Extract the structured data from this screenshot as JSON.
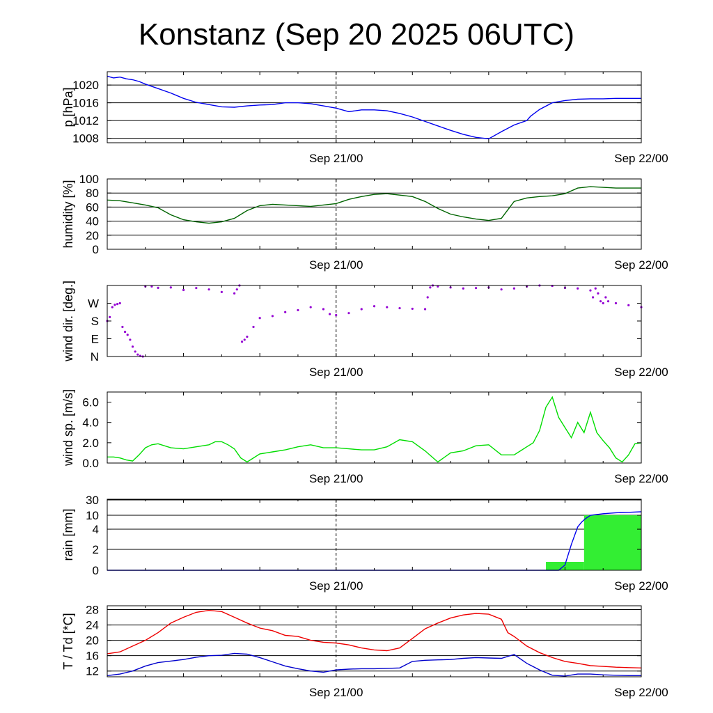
{
  "title": "Konstanz (Sep 20 2025 06UTC)",
  "colors": {
    "pressure": "#0000ee",
    "humidity": "#006400",
    "wind_dir": "#9400d3",
    "wind_speed": "#00dd00",
    "rain_bar_fill": "#33ee33",
    "rain_accum": "#0000ee",
    "temperature": "#ee0000",
    "dewpoint": "#0000cc",
    "frame": "#000000"
  },
  "chart_data": [
    {
      "type": "line",
      "ylabel": "p [hPa]",
      "x_ticks": [
        "Sep 21/00",
        "Sep 22/00"
      ],
      "x_range_hours": [
        0,
        42
      ],
      "ylim": [
        1007,
        1023
      ],
      "yticks": [
        1008,
        1012,
        1016,
        1020
      ],
      "ytick_labels": [
        "1008",
        "1012",
        "1016",
        "1020"
      ],
      "grid": true,
      "series": [
        {
          "values_key": "pressure",
          "x": [
            0,
            0.5,
            1,
            1.5,
            2,
            2.5,
            3,
            4,
            5,
            6,
            7,
            8,
            9,
            10,
            11,
            12,
            13,
            14,
            15,
            16,
            17,
            18,
            19,
            20,
            21,
            22,
            23,
            24,
            25,
            26,
            27,
            28,
            29,
            30,
            31,
            32,
            33,
            33.3,
            34,
            35,
            36,
            37,
            38,
            39,
            40,
            41,
            42
          ],
          "values": [
            1022.0,
            1021.6,
            1021.8,
            1021.4,
            1021.2,
            1020.8,
            1020.2,
            1019.2,
            1018.2,
            1017.0,
            1016.1,
            1015.6,
            1015.1,
            1015.0,
            1015.3,
            1015.5,
            1015.6,
            1016.0,
            1016.0,
            1015.8,
            1015.3,
            1014.8,
            1014.0,
            1014.4,
            1014.4,
            1014.2,
            1013.6,
            1012.8,
            1011.8,
            1010.8,
            1009.8,
            1008.9,
            1008.2,
            1007.9,
            1009.5,
            1011.0,
            1012.0,
            1013.0,
            1014.5,
            1016.0,
            1016.5,
            1016.8,
            1016.9,
            1016.9,
            1017.0,
            1017.0,
            1017.0
          ]
        }
      ]
    },
    {
      "type": "line",
      "ylabel": "humidity [%]",
      "x_ticks": [
        "Sep 21/00",
        "Sep 22/00"
      ],
      "x_range_hours": [
        0,
        42
      ],
      "ylim": [
        0,
        100
      ],
      "yticks": [
        0,
        20,
        40,
        60,
        80,
        100
      ],
      "ytick_labels": [
        "0",
        "20",
        "40",
        "60",
        "80",
        "100"
      ],
      "grid": true,
      "series": [
        {
          "values_key": "humidity",
          "x": [
            0,
            1,
            2,
            3,
            4,
            5,
            6,
            7,
            8,
            9,
            10,
            11,
            12,
            13,
            14,
            15,
            16,
            17,
            18,
            19,
            20,
            21,
            22,
            23,
            24,
            25,
            26,
            27,
            28,
            29,
            30,
            31,
            32,
            33,
            34,
            35,
            36,
            37,
            38,
            39,
            40,
            41,
            42
          ],
          "values": [
            70,
            69,
            66,
            63,
            59,
            49,
            42,
            39,
            37,
            39,
            44,
            55,
            62,
            64,
            63,
            62,
            61,
            63,
            65,
            71,
            75,
            78,
            79,
            77,
            75,
            68,
            58,
            50,
            46,
            43,
            41,
            44,
            68,
            73,
            75,
            76,
            79,
            87,
            89,
            88,
            87,
            87,
            87
          ]
        }
      ]
    },
    {
      "type": "scatter",
      "ylabel": "wind dir. [deg.]",
      "x_ticks": [
        "Sep 21/00",
        "Sep 22/00"
      ],
      "x_range_hours": [
        0,
        42
      ],
      "ylim": [
        0,
        360
      ],
      "yticks": [
        0,
        90,
        180,
        270
      ],
      "ytick_labels": [
        "N",
        "E",
        "S",
        "W"
      ],
      "grid": false,
      "series": [
        {
          "values_key": "wind_dir",
          "x": [
            0,
            0.2,
            0.4,
            0.6,
            0.8,
            1.0,
            1.2,
            1.4,
            1.6,
            1.8,
            2.0,
            2.2,
            2.4,
            2.6,
            2.8,
            3.0,
            3.5,
            4,
            5,
            6,
            7,
            8,
            9,
            10,
            10.2,
            10.4,
            10.6,
            10.8,
            11,
            11.5,
            12,
            13,
            14,
            15,
            16,
            17,
            17.5,
            18,
            19,
            20,
            21,
            22,
            23,
            24,
            25,
            25.2,
            25.4,
            25.6,
            26,
            27,
            28,
            29,
            30,
            31,
            32,
            33,
            34,
            35,
            36,
            37,
            38,
            38.2,
            38.4,
            38.6,
            38.8,
            39,
            39.2,
            39.4,
            40,
            41,
            42
          ],
          "values": [
            180,
            200,
            250,
            262,
            266,
            270,
            150,
            125,
            110,
            85,
            50,
            25,
            10,
            3,
            0,
            355,
            355,
            348,
            350,
            337,
            347,
            340,
            327,
            320,
            340,
            360,
            75,
            85,
            100,
            150,
            195,
            205,
            225,
            235,
            250,
            240,
            215,
            210,
            220,
            240,
            255,
            250,
            245,
            242,
            240,
            300,
            350,
            360,
            355,
            350,
            345,
            347,
            350,
            340,
            345,
            355,
            360,
            358,
            348,
            345,
            335,
            300,
            345,
            320,
            280,
            270,
            300,
            280,
            270,
            260,
            250
          ]
        }
      ]
    },
    {
      "type": "line",
      "ylabel": "wind sp. [m/s]",
      "x_ticks": [
        "Sep 21/00",
        "Sep 22/00"
      ],
      "x_range_hours": [
        0,
        42
      ],
      "ylim": [
        0,
        7
      ],
      "yticks": [
        0,
        2,
        4,
        6
      ],
      "ytick_labels": [
        "0.0",
        "2.0",
        "4.0",
        "6.0"
      ],
      "grid": false,
      "series": [
        {
          "values_key": "wind_speed",
          "x": [
            0,
            0.5,
            1,
            1.5,
            2,
            2.5,
            3,
            3.5,
            4,
            5,
            6,
            7,
            8,
            8.5,
            9,
            9.5,
            10,
            10.5,
            11,
            12,
            13,
            14,
            15,
            16,
            17,
            18,
            19,
            20,
            21,
            22,
            23,
            24,
            25,
            26,
            27,
            28,
            29,
            30,
            31,
            32,
            32.5,
            33,
            33.5,
            34,
            34.5,
            35,
            35.5,
            36,
            36.5,
            37,
            37.5,
            38,
            38.5,
            39,
            39.5,
            40,
            40.5,
            41,
            41.5,
            42
          ],
          "values": [
            0.6,
            0.6,
            0.5,
            0.3,
            0.2,
            0.8,
            1.5,
            1.8,
            1.9,
            1.5,
            1.4,
            1.6,
            1.8,
            2.1,
            2.1,
            1.8,
            1.4,
            0.5,
            0.1,
            0.9,
            1.1,
            1.3,
            1.6,
            1.8,
            1.5,
            1.5,
            1.4,
            1.3,
            1.3,
            1.6,
            2.3,
            2.1,
            1.2,
            0.1,
            1.0,
            1.2,
            1.7,
            1.8,
            0.8,
            0.8,
            1.2,
            1.6,
            2.0,
            3.2,
            5.5,
            6.5,
            4.5,
            3.5,
            2.5,
            4.0,
            3.0,
            5.0,
            3.0,
            2.2,
            1.5,
            0.5,
            0.1,
            0.8,
            1.9,
            2.0
          ]
        }
      ]
    },
    {
      "type": "bar",
      "ylabel": "rain [mm]",
      "x_ticks": [
        "Sep 21/00",
        "Sep 22/00"
      ],
      "x_range_hours": [
        0,
        42
      ],
      "y_scale": "nonlinear",
      "ylim": [
        0,
        30
      ],
      "yticks": [
        0,
        2,
        4,
        10,
        30
      ],
      "ytick_labels": [
        "0",
        "2",
        "4",
        "10",
        "30"
      ],
      "grid": true,
      "series": [
        {
          "values_key": "rain_bars",
          "bars": [
            {
              "x_start": 34.5,
              "x_end": 37.5,
              "value": 0.8
            },
            {
              "x_start": 37.5,
              "x_end": 42.0,
              "value": 10.0
            }
          ]
        },
        {
          "values_key": "rain_accum",
          "type": "line",
          "x": [
            0,
            35.5,
            36,
            36.5,
            37,
            37.3,
            37.6,
            38,
            39,
            40,
            41,
            42
          ],
          "values": [
            0,
            0,
            0.5,
            2.5,
            5.0,
            7.0,
            8.5,
            10.0,
            12.0,
            13.2,
            13.8,
            14.5
          ]
        }
      ]
    },
    {
      "type": "line",
      "ylabel": "T / Td [*C]",
      "x_ticks": [
        "Sep 21/00",
        "Sep 22/00"
      ],
      "x_range_hours": [
        0,
        42
      ],
      "ylim": [
        10.5,
        29
      ],
      "yticks": [
        12,
        16,
        20,
        24,
        28
      ],
      "ytick_labels": [
        "12",
        "16",
        "20",
        "24",
        "28"
      ],
      "grid": true,
      "series": [
        {
          "values_key": "temperature",
          "x": [
            0,
            1,
            2,
            3,
            4,
            5,
            6,
            7,
            8,
            9,
            10,
            11,
            12,
            13,
            14,
            15,
            16,
            17,
            18,
            19,
            20,
            21,
            22,
            23,
            24,
            25,
            26,
            27,
            28,
            29,
            30,
            31,
            31.5,
            32,
            33,
            34,
            35,
            36,
            37,
            38,
            39,
            40,
            41,
            42
          ],
          "values": [
            16.5,
            17.0,
            18.5,
            20.0,
            22.0,
            24.5,
            26.0,
            27.3,
            27.8,
            27.5,
            26.0,
            24.5,
            23.2,
            22.5,
            21.3,
            21.0,
            20.0,
            19.5,
            19.3,
            18.8,
            18.0,
            17.5,
            17.3,
            18.0,
            20.5,
            23.0,
            24.5,
            25.8,
            26.6,
            27.0,
            26.8,
            25.5,
            22.0,
            21.0,
            18.5,
            16.8,
            15.5,
            14.5,
            14.0,
            13.4,
            13.2,
            13.0,
            12.9,
            12.8
          ]
        },
        {
          "values_key": "dewpoint",
          "x": [
            0,
            1,
            2,
            3,
            4,
            5,
            6,
            7,
            8,
            9,
            10,
            11,
            12,
            13,
            14,
            15,
            16,
            17,
            18,
            19,
            20,
            21,
            22,
            23,
            24,
            25,
            26,
            27,
            28,
            29,
            30,
            31,
            32,
            33,
            34,
            35,
            36,
            37,
            38,
            39,
            40,
            41,
            42
          ],
          "values": [
            10.8,
            11.2,
            12.0,
            13.3,
            14.2,
            14.6,
            15.0,
            15.6,
            16.0,
            16.1,
            16.6,
            16.4,
            15.5,
            14.4,
            13.3,
            12.6,
            12.0,
            11.7,
            12.3,
            12.5,
            12.6,
            12.6,
            12.7,
            12.8,
            14.5,
            14.8,
            14.9,
            15.0,
            15.3,
            15.5,
            15.4,
            15.3,
            16.3,
            14.0,
            12.3,
            10.9,
            10.7,
            11.2,
            11.2,
            11.0,
            10.9,
            10.8,
            10.8
          ]
        }
      ]
    }
  ]
}
